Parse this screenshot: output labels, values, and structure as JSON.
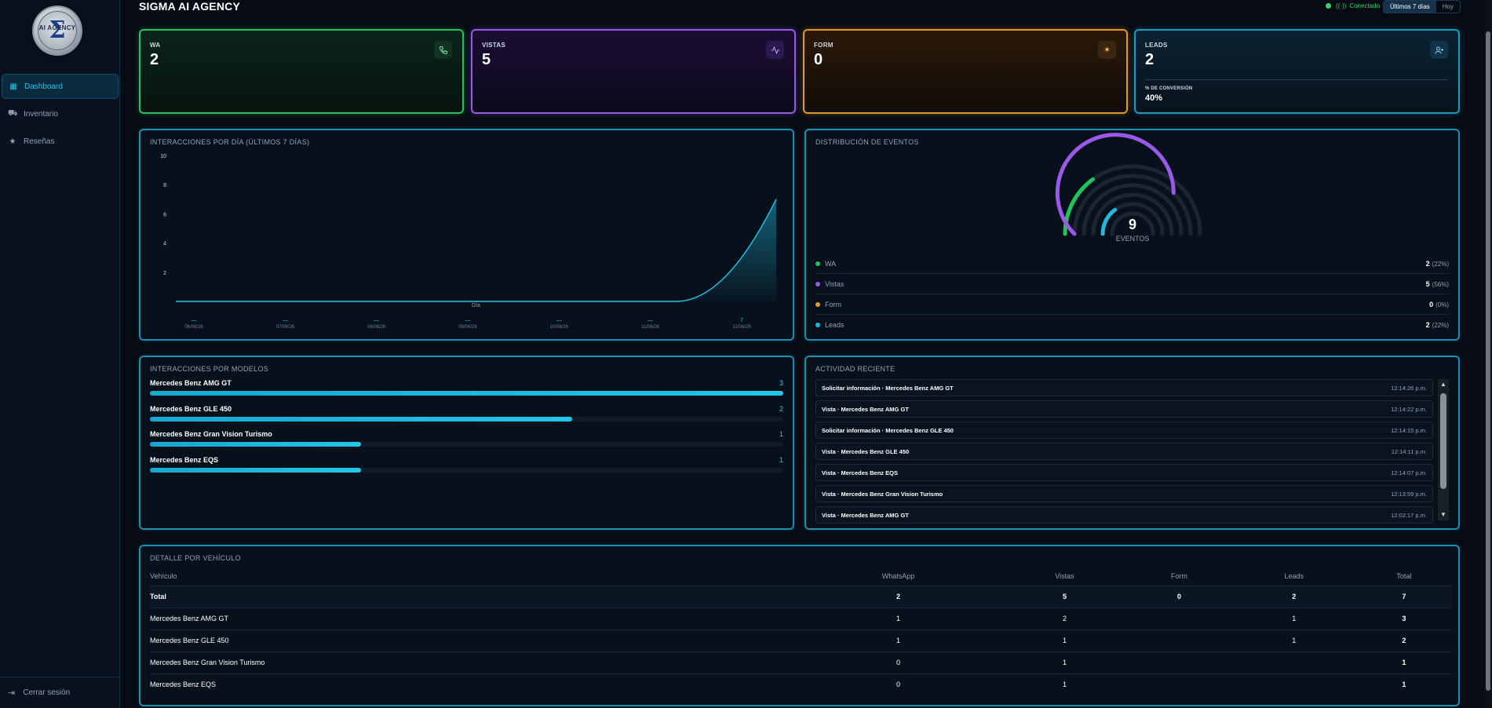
{
  "app": {
    "title": "SIGMA AI AGENCY",
    "logo_text": "AI AGENCY"
  },
  "status": {
    "label": "Conectado"
  },
  "range": {
    "options": [
      "Últimos 7 días",
      "Hoy"
    ],
    "selected": "Últimos 7 días"
  },
  "sidebar": {
    "items": [
      {
        "label": "Dashboard",
        "icon": "grid-icon",
        "active": true
      },
      {
        "label": "Inventario",
        "icon": "car-icon",
        "active": false
      },
      {
        "label": "Reseñas",
        "icon": "star-icon",
        "active": false
      }
    ],
    "logout": "Cerrar sesión"
  },
  "stats": {
    "wa": {
      "label": "WA",
      "value": "2",
      "color": "#22c25c",
      "icon": "phone-icon"
    },
    "vistas": {
      "label": "VISTAS",
      "value": "5",
      "color": "#9b59e8",
      "icon": "activity-icon"
    },
    "form": {
      "label": "FORM",
      "value": "0",
      "color": "#e39a23",
      "icon": "sparkle-icon"
    },
    "leads": {
      "label": "LEADS",
      "value": "2",
      "color": "#1a9bbd",
      "icon": "user-plus-icon",
      "conversion_label": "% DE CONVERSIÓN",
      "conversion_value": "40%"
    }
  },
  "line_panel": {
    "title": "INTERACCIONES POR DÍA (ÚLTIMOS 7 DÍAS)"
  },
  "dist_panel": {
    "title": "DISTRIBUCIÓN DE EVENTOS",
    "total": "9",
    "total_label": "EVENTOS"
  },
  "chart_data": [
    {
      "type": "area",
      "title": "INTERACCIONES POR DÍA (ÚLTIMOS 7 DÍAS)",
      "xlabel": "Día",
      "ylabel": "",
      "categories": [
        "06/06/26",
        "07/06/26",
        "08/06/26",
        "09/06/26",
        "10/06/26",
        "11/06/26",
        "12/06/26"
      ],
      "point_labels": [
        "—",
        "—",
        "—",
        "—",
        "—",
        "—",
        "7"
      ],
      "values": [
        0,
        0,
        0,
        0,
        0,
        0,
        7
      ],
      "yticks": [
        2,
        4,
        6,
        8,
        10
      ],
      "ylim": [
        0,
        10
      ],
      "color": "#22c6e6",
      "grid": false
    },
    {
      "type": "radial-bar",
      "title": "DISTRIBUCIÓN DE EVENTOS",
      "series": [
        {
          "name": "WA",
          "value": 2,
          "pct": "(22%)",
          "color": "#22c25c"
        },
        {
          "name": "Vistas",
          "value": 5,
          "pct": "(56%)",
          "color": "#9b59e8"
        },
        {
          "name": "Form",
          "value": 0,
          "pct": "(0%)",
          "color": "#e39a23"
        },
        {
          "name": "Leads",
          "value": 2,
          "pct": "(22%)",
          "color": "#22b8dc"
        }
      ],
      "max": 9,
      "grid": false
    }
  ],
  "models_panel": {
    "title": "INTERACCIONES POR MODELOS",
    "items": [
      {
        "name": "Mercedes Benz AMG GT",
        "count": "3",
        "fraction": 1.0
      },
      {
        "name": "Mercedes Benz GLE 450",
        "count": "2",
        "fraction": 0.667
      },
      {
        "name": "Mercedes Benz Gran Vision Turismo",
        "count": "1",
        "fraction": 0.333
      },
      {
        "name": "Mercedes Benz EQS",
        "count": "1",
        "fraction": 0.333
      }
    ]
  },
  "activity_panel": {
    "title": "ACTIVIDAD RECIENTE",
    "items": [
      {
        "text": "Solicitar información · Mercedes Benz AMG GT",
        "time": "12:14:26 p.m."
      },
      {
        "text": "Vista · Mercedes Benz AMG GT",
        "time": "12:14:22 p.m."
      },
      {
        "text": "Solicitar información · Mercedes Benz GLE 450",
        "time": "12:14:15 p.m."
      },
      {
        "text": "Vista · Mercedes Benz GLE 450",
        "time": "12:14:11 p.m."
      },
      {
        "text": "Vista · Mercedes Benz EQS",
        "time": "12:14:07 p.m."
      },
      {
        "text": "Vista · Mercedes Benz Gran Vision Turismo",
        "time": "12:13:59 p.m."
      },
      {
        "text": "Vista · Mercedes Benz AMG GT",
        "time": "12:02:17 p.m."
      }
    ]
  },
  "table_panel": {
    "title": "DETALLE POR VEHÍCULO",
    "headers": [
      "Vehículo",
      "WhatsApp",
      "Vistas",
      "Form",
      "Leads",
      "Total"
    ],
    "rows": [
      [
        "Total",
        "2",
        "5",
        "0",
        "2",
        "7"
      ],
      [
        "Mercedes Benz AMG GT",
        "1",
        "2",
        "",
        "1",
        "3"
      ],
      [
        "Mercedes Benz GLE 450",
        "1",
        "1",
        "",
        "1",
        "2"
      ],
      [
        "Mercedes Benz Gran Vision Turismo",
        "0",
        "1",
        "",
        "",
        "1"
      ],
      [
        "Mercedes Benz EQS",
        "0",
        "1",
        "",
        "",
        "1"
      ]
    ]
  }
}
